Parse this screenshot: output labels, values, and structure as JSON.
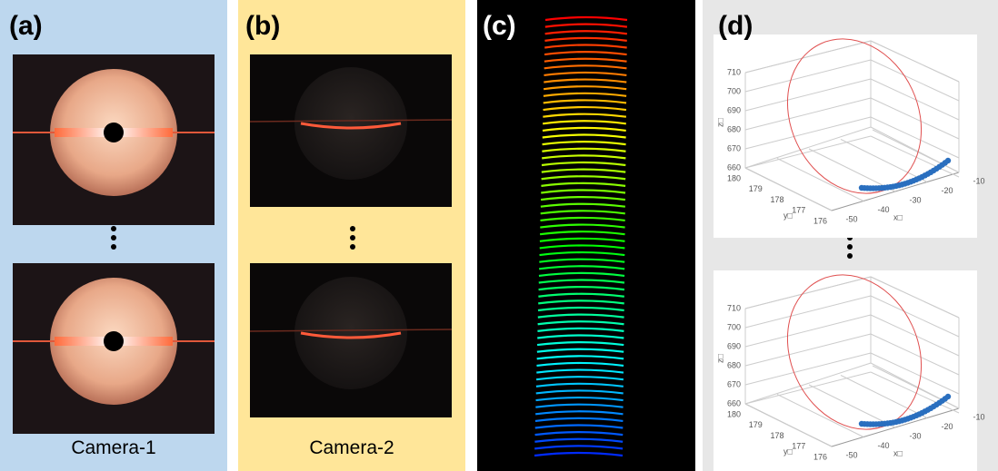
{
  "panels": [
    {
      "label": "(a)",
      "caption": "Camera-1"
    },
    {
      "label": "(b)",
      "caption": "Camera-2"
    },
    {
      "label": "(c)"
    },
    {
      "label": "(d)"
    }
  ],
  "plots": [
    {
      "z_ticks": [
        710,
        700,
        690,
        680,
        670,
        660
      ],
      "y_ticks": [
        180,
        179,
        178,
        177,
        176
      ],
      "x_ticks": [
        -50,
        -40,
        -30,
        -20,
        -10
      ],
      "z_label": "z□",
      "y_label": "y□",
      "x_label": "x□"
    },
    {
      "z_ticks": [
        710,
        700,
        690,
        680,
        670,
        660
      ],
      "y_ticks": [
        180,
        179,
        178,
        177,
        176
      ],
      "x_ticks": [
        -50,
        -40,
        -30,
        -20,
        -10
      ],
      "z_label": "z□",
      "y_label": "y□",
      "x_label": "x□"
    }
  ]
}
